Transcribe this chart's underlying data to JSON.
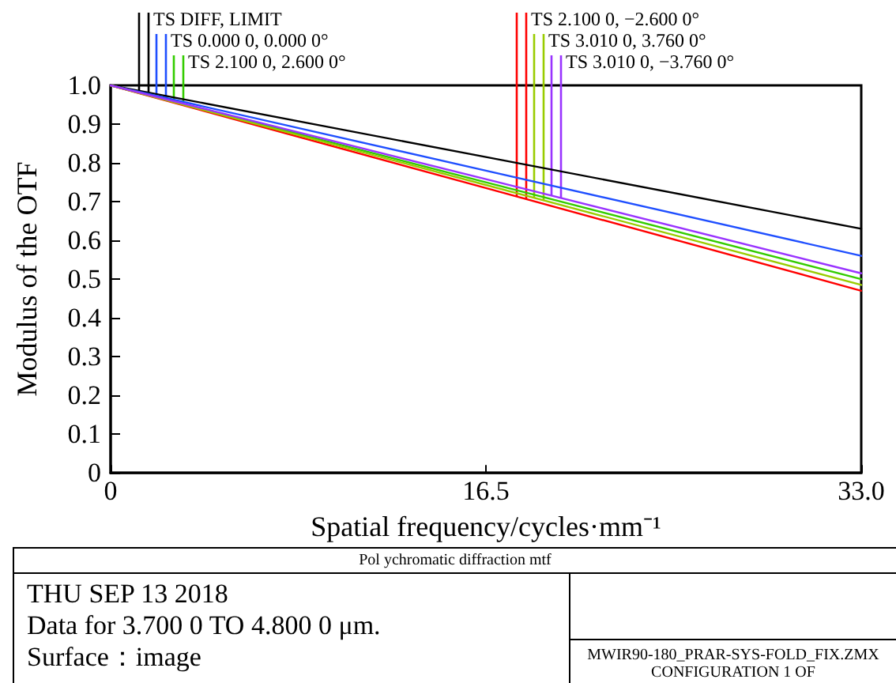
{
  "chart_data": {
    "type": "line",
    "title": "Pol ychromatic diffraction mtf",
    "xlabel": "Spatial frequency/cycles·mm⁻¹",
    "ylabel": "Modulus of the OTF",
    "x": [
      0,
      16.5,
      33
    ],
    "series": [
      {
        "name": "TS DIFF, LIMIT",
        "color": "#000000",
        "values": [
          1,
          0.815,
          0.63
        ]
      },
      {
        "name": "TS 0.000 0, 0.000 0°",
        "color": "#1f4fff",
        "values": [
          1,
          0.78,
          0.56
        ]
      },
      {
        "name": "TS 2.100 0, 2.600 0°",
        "color": "#33cc00",
        "values": [
          1,
          0.75,
          0.5
        ]
      },
      {
        "name": "TS 2.100 0, −2.600 0°",
        "color": "#ff0000",
        "values": [
          1,
          0.735,
          0.47
        ]
      },
      {
        "name": "TS 3.010 0, 3.760 0°",
        "color": "#99cc00",
        "values": [
          1,
          0.743,
          0.485
        ]
      },
      {
        "name": "TS 3.010 0, −3.760 0°",
        "color": "#9933ff",
        "values": [
          1,
          0.758,
          0.515
        ]
      }
    ],
    "xlim": [
      0,
      33
    ],
    "xticks": [
      0,
      16.5,
      {
        "value": 33,
        "label": "33.0"
      }
    ],
    "ylim": [
      0,
      1
    ],
    "yticks": [
      0,
      0.1,
      0.2,
      0.3,
      0.4,
      0.5,
      0.6,
      0.7,
      0.8,
      0.9,
      {
        "value": 1,
        "label": "1.0"
      }
    ],
    "legend": "top",
    "marker": "none",
    "line_style": "solid",
    "annotations": [
      "THU SEP 13 2018",
      "Data for 3.700 0 TO 4.800 0 μm.",
      "Surface：image",
      "MWIR90-180_PRAR-SYS-FOLD_FIX.ZMX CONFIGURATION 1 OF"
    ]
  }
}
